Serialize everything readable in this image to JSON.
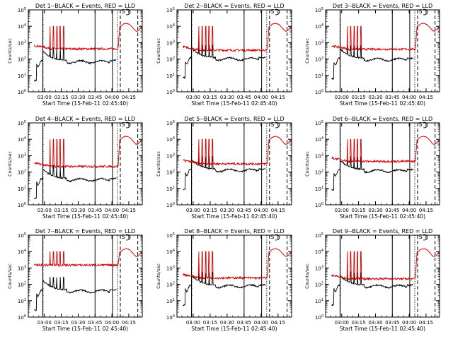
{
  "figure": {
    "background": "#ffffff",
    "axis_color": "#000000",
    "events_color": "#000000",
    "lld_color": "#d40000"
  },
  "chart_data": [
    {
      "type": "line",
      "title": "Det 1--BLACK = Events, RED = LLD",
      "xlabel": "Start Time (15-Feb-11 02:45:40)",
      "ylabel": "Counts/sec",
      "yscale": "log",
      "xlim": [
        "02:45:40",
        "04:27"
      ],
      "ylim": [
        1,
        100000
      ],
      "x_ticks": [
        "03:00",
        "03:15",
        "03:30",
        "03:45",
        "04:00",
        "04:15"
      ],
      "y_ticks": [
        "10^0",
        "10^1",
        "10^2",
        "10^3",
        "10^4",
        "10^5"
      ],
      "series": [
        {
          "name": "Events",
          "color": "#000000",
          "y_level": 80
        },
        {
          "name": "LLD",
          "color": "#d40000",
          "y_level": 420
        }
      ],
      "lld_high": 10000,
      "spikes_at": [
        "03:05",
        "03:08",
        "03:11",
        "03:14",
        "03:17"
      ],
      "saa_label": "S"
    },
    {
      "type": "line",
      "title": "Det 2--BLACK = Events, RED = LLD",
      "xlabel": "Start Time (15-Feb-11 02:45:40)",
      "ylabel": "Counts/sec",
      "yscale": "log",
      "xlim": [
        "02:45:40",
        "04:27"
      ],
      "ylim": [
        1,
        100000
      ],
      "x_ticks": [
        "03:00",
        "03:15",
        "03:30",
        "03:45",
        "04:00",
        "04:15"
      ],
      "y_ticks": [
        "10^0",
        "10^1",
        "10^2",
        "10^3",
        "10^4",
        "10^5"
      ],
      "series": [
        {
          "name": "Events",
          "color": "#000000",
          "y_level": 120
        },
        {
          "name": "LLD",
          "color": "#d40000",
          "y_level": 350
        }
      ],
      "lld_high": 10000,
      "spikes_at": [
        "03:05",
        "03:08",
        "03:11",
        "03:14",
        "03:17"
      ],
      "saa_label": "S"
    },
    {
      "type": "line",
      "title": "Det 3--BLACK = Events, RED = LLD",
      "xlabel": "Start Time (15-Feb-11 02:45:40)",
      "ylabel": "Counts/sec",
      "yscale": "log",
      "xlim": [
        "02:45:40",
        "04:27"
      ],
      "ylim": [
        1,
        100000
      ],
      "x_ticks": [
        "03:00",
        "03:15",
        "03:30",
        "03:45",
        "04:00",
        "04:15"
      ],
      "y_ticks": [
        "10^0",
        "10^1",
        "10^2",
        "10^3",
        "10^4",
        "10^5"
      ],
      "series": [
        {
          "name": "Events",
          "color": "#000000",
          "y_level": 110
        },
        {
          "name": "LLD",
          "color": "#d40000",
          "y_level": 400
        }
      ],
      "lld_high": 10000,
      "spikes_at": [
        "03:05",
        "03:08",
        "03:11",
        "03:14",
        "03:17"
      ],
      "saa_label": "S"
    },
    {
      "type": "line",
      "title": "Det 4--BLACK = Events, RED = LLD",
      "xlabel": "Start Time (15-Feb-11 02:45:40)",
      "ylabel": "Counts/sec",
      "yscale": "log",
      "xlim": [
        "02:45:40",
        "04:27"
      ],
      "ylim": [
        1,
        100000
      ],
      "x_ticks": [
        "03:00",
        "03:15",
        "03:30",
        "03:45",
        "04:00",
        "04:15"
      ],
      "y_ticks": [
        "10^0",
        "10^1",
        "10^2",
        "10^3",
        "10^4",
        "10^5"
      ],
      "series": [
        {
          "name": "Events",
          "color": "#000000",
          "y_level": 40
        },
        {
          "name": "LLD",
          "color": "#d40000",
          "y_level": 220
        }
      ],
      "lld_high": 10000,
      "spikes_at": [
        "03:05",
        "03:08",
        "03:11",
        "03:14",
        "03:17"
      ],
      "saa_label": "S"
    },
    {
      "type": "line",
      "title": "Det 5--BLACK = Events, RED = LLD",
      "xlabel": "Start Time (15-Feb-11 02:45:40)",
      "ylabel": "Counts/sec",
      "yscale": "log",
      "xlim": [
        "02:45:40",
        "04:27"
      ],
      "ylim": [
        1,
        100000
      ],
      "x_ticks": [
        "03:00",
        "03:15",
        "03:30",
        "03:45",
        "04:00",
        "04:15"
      ],
      "y_ticks": [
        "10^0",
        "10^1",
        "10^2",
        "10^3",
        "10^4",
        "10^5"
      ],
      "series": [
        {
          "name": "Events",
          "color": "#000000",
          "y_level": 150
        },
        {
          "name": "LLD",
          "color": "#d40000",
          "y_level": 320
        }
      ],
      "lld_high": 10000,
      "spikes_at": [
        "03:05",
        "03:08",
        "03:11",
        "03:14",
        "03:17"
      ],
      "saa_label": "S"
    },
    {
      "type": "line",
      "title": "Det 6--BLACK = Events, RED = LLD",
      "xlabel": "Start Time (15-Feb-11 02:45:40)",
      "ylabel": "Counts/sec",
      "yscale": "log",
      "xlim": [
        "02:45:40",
        "04:27"
      ],
      "ylim": [
        1,
        100000
      ],
      "x_ticks": [
        "03:00",
        "03:15",
        "03:30",
        "03:45",
        "04:00",
        "04:15"
      ],
      "y_ticks": [
        "10^0",
        "10^1",
        "10^2",
        "10^3",
        "10^4",
        "10^5"
      ],
      "series": [
        {
          "name": "Events",
          "color": "#000000",
          "y_level": 140
        },
        {
          "name": "LLD",
          "color": "#d40000",
          "y_level": 450
        }
      ],
      "lld_high": 10000,
      "spikes_at": [
        "03:05",
        "03:08",
        "03:11",
        "03:14",
        "03:17"
      ],
      "saa_label": "S"
    },
    {
      "type": "line",
      "title": "Det 7--BLACK = Events, RED = LLD",
      "xlabel": "Start Time (15-Feb-11 02:45:40)",
      "ylabel": "Counts/sec",
      "yscale": "log",
      "xlim": [
        "02:45:40",
        "04:27"
      ],
      "ylim": [
        1,
        100000
      ],
      "x_ticks": [
        "03:00",
        "03:15",
        "03:30",
        "03:45",
        "04:00",
        "04:15"
      ],
      "y_ticks": [
        "10^0",
        "10^1",
        "10^2",
        "10^3",
        "10^4",
        "10^5"
      ],
      "series": [
        {
          "name": "Events",
          "color": "#000000",
          "y_level": 45
        },
        {
          "name": "LLD",
          "color": "#d40000",
          "y_level": 1500
        }
      ],
      "lld_high": 10000,
      "spikes_at": [
        "03:05",
        "03:08",
        "03:11",
        "03:14",
        "03:17"
      ],
      "saa_label": "S"
    },
    {
      "type": "line",
      "title": "Det 8--BLACK = Events, RED = LLD",
      "xlabel": "Start Time (15-Feb-11 02:45:40)",
      "ylabel": "Counts/sec",
      "yscale": "log",
      "xlim": [
        "02:45:40",
        "04:27"
      ],
      "ylim": [
        1,
        100000
      ],
      "x_ticks": [
        "03:00",
        "03:15",
        "03:30",
        "03:45",
        "04:00",
        "04:15"
      ],
      "y_ticks": [
        "10^0",
        "10^1",
        "10^2",
        "10^3",
        "10^4",
        "10^5"
      ],
      "series": [
        {
          "name": "Events",
          "color": "#000000",
          "y_level": 90
        },
        {
          "name": "LLD",
          "color": "#d40000",
          "y_level": 250
        }
      ],
      "lld_high": 10000,
      "spikes_at": [
        "03:05",
        "03:08",
        "03:11",
        "03:14",
        "03:17"
      ],
      "saa_label": "S"
    },
    {
      "type": "line",
      "title": "Det 9--BLACK = Events, RED = LLD",
      "xlabel": "Start Time (15-Feb-11 02:45:40)",
      "ylabel": "Counts/sec",
      "yscale": "log",
      "xlim": [
        "02:45:40",
        "04:27"
      ],
      "ylim": [
        1,
        100000
      ],
      "x_ticks": [
        "03:00",
        "03:15",
        "03:30",
        "03:45",
        "04:00",
        "04:15"
      ],
      "y_ticks": [
        "10^0",
        "10^1",
        "10^2",
        "10^3",
        "10^4",
        "10^5"
      ],
      "series": [
        {
          "name": "Events",
          "color": "#000000",
          "y_level": 90
        },
        {
          "name": "LLD",
          "color": "#d40000",
          "y_level": 220
        }
      ],
      "lld_high": 10000,
      "spikes_at": [
        "03:05",
        "03:08",
        "03:11",
        "03:14",
        "03:17"
      ],
      "saa_label": "S"
    }
  ]
}
